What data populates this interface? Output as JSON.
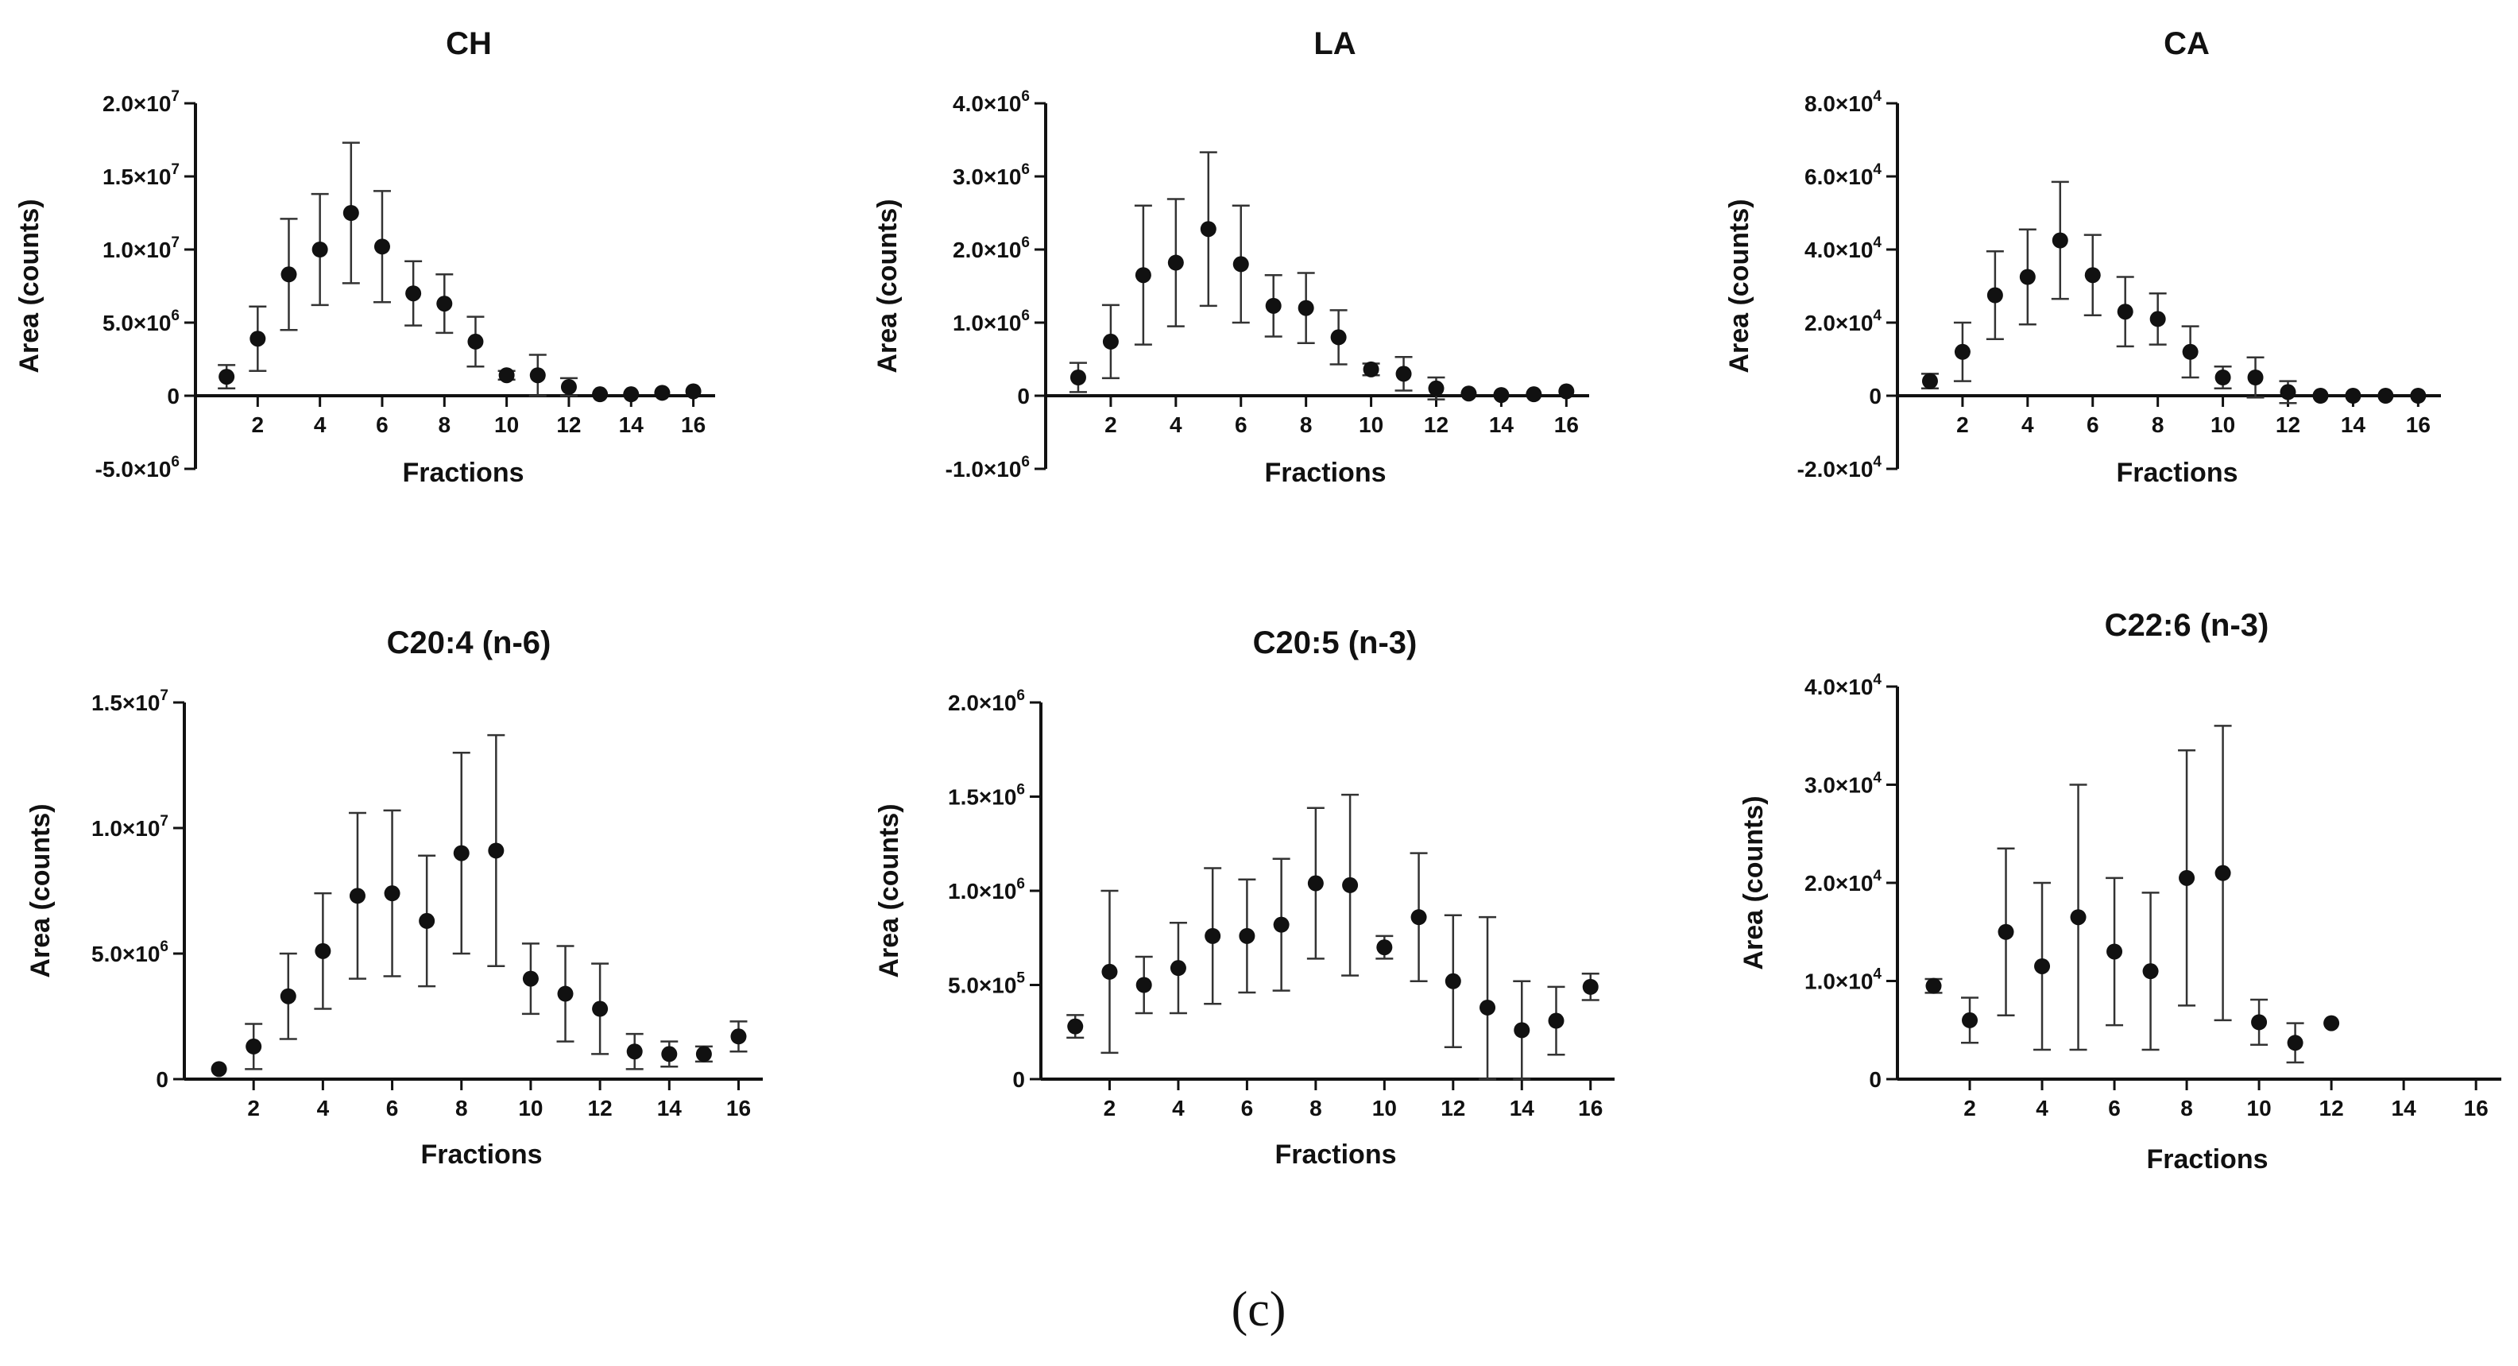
{
  "figure": {
    "caption": "(c)",
    "xlabel": "Fractions",
    "ylabel": "Area (counts)"
  },
  "chart_data": [
    {
      "type": "scatter",
      "title": "CH",
      "xlabel": "Fractions",
      "ylabel": "Area (counts)",
      "xlim": [
        0,
        16.7
      ],
      "ylim": [
        -5000000,
        20000000
      ],
      "xticks": [
        2,
        4,
        6,
        8,
        10,
        12,
        14,
        16
      ],
      "xtick_labels": [
        "2",
        "4",
        "6",
        "8",
        "10",
        "12",
        "14",
        "16"
      ],
      "yticks": [
        -5000000,
        0,
        5000000,
        10000000,
        15000000,
        20000000
      ],
      "ytick_labels": [
        [
          "-5.0×10",
          "6"
        ],
        [
          "0",
          ""
        ],
        [
          "5.0×10",
          "6"
        ],
        [
          "1.0×10",
          "7"
        ],
        [
          "1.5×10",
          "7"
        ],
        [
          "2.0×10",
          "7"
        ]
      ],
      "x": [
        1,
        2,
        3,
        4,
        5,
        6,
        7,
        8,
        9,
        10,
        11,
        12,
        13,
        14,
        15,
        16
      ],
      "y": [
        1300000,
        3900000,
        8300000,
        10000000,
        12500000,
        10200000,
        7000000,
        6300000,
        3700000,
        1400000,
        1400000,
        600000,
        100000,
        100000,
        200000,
        300000
      ],
      "err": [
        800000,
        2200000,
        3800000,
        3800000,
        4800000,
        3800000,
        2200000,
        2000000,
        1700000,
        300000,
        1400000,
        600000,
        0,
        0,
        0,
        0
      ]
    },
    {
      "type": "scatter",
      "title": "LA",
      "xlabel": "Fractions",
      "ylabel": "Area (counts)",
      "xlim": [
        0,
        16.7
      ],
      "ylim": [
        -1000000,
        4000000
      ],
      "xticks": [
        2,
        4,
        6,
        8,
        10,
        12,
        14,
        16
      ],
      "xtick_labels": [
        "2",
        "4",
        "6",
        "8",
        "10",
        "12",
        "14",
        "16"
      ],
      "yticks": [
        -1000000,
        0,
        1000000,
        2000000,
        3000000,
        4000000
      ],
      "ytick_labels": [
        [
          "-1.0×10",
          "6"
        ],
        [
          "0",
          ""
        ],
        [
          "1.0×10",
          "6"
        ],
        [
          "2.0×10",
          "6"
        ],
        [
          "3.0×10",
          "6"
        ],
        [
          "4.0×10",
          "6"
        ]
      ],
      "x": [
        1,
        2,
        3,
        4,
        5,
        6,
        7,
        8,
        9,
        10,
        11,
        12,
        13,
        14,
        15,
        16
      ],
      "y": [
        250000,
        740000,
        1650000,
        1820000,
        2280000,
        1800000,
        1230000,
        1200000,
        800000,
        360000,
        300000,
        100000,
        30000,
        10000,
        20000,
        60000
      ],
      "err": [
        200000,
        500000,
        950000,
        870000,
        1050000,
        800000,
        420000,
        480000,
        370000,
        80000,
        230000,
        150000,
        0,
        0,
        0,
        0
      ]
    },
    {
      "type": "scatter",
      "title": "CA",
      "xlabel": "Fractions",
      "ylabel": "Area (counts)",
      "xlim": [
        0,
        16.7
      ],
      "ylim": [
        -20000,
        80000
      ],
      "xticks": [
        2,
        4,
        6,
        8,
        10,
        12,
        14,
        16
      ],
      "xtick_labels": [
        "2",
        "4",
        "6",
        "8",
        "10",
        "12",
        "14",
        "16"
      ],
      "yticks": [
        -20000,
        0,
        20000,
        40000,
        60000,
        80000
      ],
      "ytick_labels": [
        [
          "-2.0×10",
          "4"
        ],
        [
          "0",
          ""
        ],
        [
          "2.0×10",
          "4"
        ],
        [
          "4.0×10",
          "4"
        ],
        [
          "6.0×10",
          "4"
        ],
        [
          "8.0×10",
          "4"
        ]
      ],
      "x": [
        1,
        2,
        3,
        4,
        5,
        6,
        7,
        8,
        9,
        10,
        11,
        12,
        13,
        14,
        15,
        16
      ],
      "y": [
        4000,
        12000,
        27500,
        32500,
        42500,
        33000,
        23000,
        21000,
        12000,
        5000,
        5000,
        1000,
        0,
        0,
        0,
        0
      ],
      "err": [
        2000,
        8000,
        12000,
        13000,
        16000,
        11000,
        9500,
        7000,
        7000,
        3000,
        5500,
        3000,
        0,
        0,
        0,
        0
      ]
    },
    {
      "type": "scatter",
      "title": "C20:4 (n-6)",
      "xlabel": "Fractions",
      "ylabel": "Area (counts)",
      "xlim": [
        0,
        16.7
      ],
      "ylim": [
        0,
        15000000
      ],
      "xticks": [
        2,
        4,
        6,
        8,
        10,
        12,
        14,
        16
      ],
      "xtick_labels": [
        "2",
        "4",
        "6",
        "8",
        "10",
        "12",
        "14",
        "16"
      ],
      "yticks": [
        0,
        5000000,
        10000000,
        15000000
      ],
      "ytick_labels": [
        [
          "0",
          ""
        ],
        [
          "5.0×10",
          "6"
        ],
        [
          "1.0×10",
          "7"
        ],
        [
          "1.5×10",
          "7"
        ]
      ],
      "x": [
        1,
        2,
        3,
        4,
        5,
        6,
        7,
        8,
        9,
        10,
        11,
        12,
        13,
        14,
        15,
        16
      ],
      "y": [
        400000,
        1300000,
        3300000,
        5100000,
        7300000,
        7400000,
        6300000,
        9000000,
        9100000,
        4000000,
        3400000,
        2800000,
        1100000,
        1000000,
        1000000,
        1700000
      ],
      "err": [
        0,
        900000,
        1700000,
        2300000,
        3300000,
        3300000,
        2600000,
        4000000,
        4600000,
        1400000,
        1900000,
        1800000,
        700000,
        500000,
        300000,
        600000
      ]
    },
    {
      "type": "scatter",
      "title": "C20:5 (n-3)",
      "xlabel": "Fractions",
      "ylabel": "Area (counts)",
      "xlim": [
        0,
        16.7
      ],
      "ylim": [
        0,
        2000000
      ],
      "xticks": [
        2,
        4,
        6,
        8,
        10,
        12,
        14,
        16
      ],
      "xtick_labels": [
        "2",
        "4",
        "6",
        "8",
        "10",
        "12",
        "14",
        "16"
      ],
      "yticks": [
        0,
        500000,
        1000000,
        1500000,
        2000000
      ],
      "ytick_labels": [
        [
          "0",
          ""
        ],
        [
          "5.0×10",
          "5"
        ],
        [
          "1.0×10",
          "6"
        ],
        [
          "1.5×10",
          "6"
        ],
        [
          "2.0×10",
          "6"
        ]
      ],
      "x": [
        1,
        2,
        3,
        4,
        5,
        6,
        7,
        8,
        9,
        10,
        11,
        12,
        13,
        14,
        15,
        16
      ],
      "y": [
        280000,
        570000,
        500000,
        590000,
        760000,
        760000,
        820000,
        1040000,
        1030000,
        700000,
        860000,
        520000,
        380000,
        260000,
        310000,
        490000
      ],
      "err": [
        60000,
        430000,
        150000,
        240000,
        360000,
        300000,
        350000,
        400000,
        480000,
        60000,
        340000,
        350000,
        480000,
        260000,
        180000,
        70000
      ]
    },
    {
      "type": "scatter",
      "title": "C22:6 (n-3)",
      "xlabel": "Fractions",
      "ylabel": "Area (counts)",
      "xlim": [
        0,
        16.7
      ],
      "ylim": [
        0,
        40000
      ],
      "xticks": [
        2,
        4,
        6,
        8,
        10,
        12,
        14,
        16
      ],
      "xtick_labels": [
        "2",
        "4",
        "6",
        "8",
        "10",
        "12",
        "14",
        "16"
      ],
      "yticks": [
        0,
        10000,
        20000,
        30000,
        40000
      ],
      "ytick_labels": [
        [
          "0",
          ""
        ],
        [
          "1.0×10",
          "4"
        ],
        [
          "2.0×10",
          "4"
        ],
        [
          "3.0×10",
          "4"
        ],
        [
          "4.0×10",
          "4"
        ]
      ],
      "x": [
        1,
        2,
        3,
        4,
        5,
        6,
        7,
        8,
        9,
        10,
        11,
        12
      ],
      "y": [
        9500,
        6000,
        15000,
        11500,
        16500,
        13000,
        11000,
        20500,
        21000,
        5800,
        3700,
        5700
      ],
      "err": [
        700,
        2300,
        8500,
        8500,
        13500,
        7500,
        8000,
        13000,
        15000,
        2300,
        2000,
        0
      ]
    }
  ]
}
